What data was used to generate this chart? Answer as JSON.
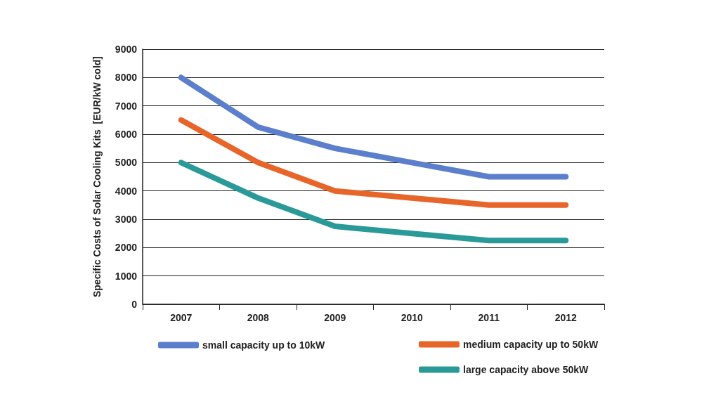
{
  "chart_data": {
    "type": "line",
    "ylabel": "Specific Costs of Solar Cooling Kits  [EUR/kW cold]",
    "categories": [
      "2007",
      "2008",
      "2009",
      "2010",
      "2011",
      "2012"
    ],
    "series": [
      {
        "name": "small capacity up to 10kW",
        "color": "#5b7fcc",
        "values": [
          8000,
          6250,
          5500,
          5000,
          4500,
          4500
        ]
      },
      {
        "name": "medium capacity up to 50kW",
        "color": "#e8652a",
        "values": [
          6500,
          5000,
          4000,
          3750,
          3500,
          3500
        ]
      },
      {
        "name": "large capacity above 50kW",
        "color": "#2a9a98",
        "values": [
          5000,
          3750,
          2750,
          2500,
          2250,
          2250
        ]
      }
    ],
    "ylim": [
      0,
      9000
    ],
    "yticks": [
      0,
      1000,
      2000,
      3000,
      4000,
      5000,
      6000,
      7000,
      8000,
      9000
    ],
    "grid": "y",
    "legend": "bottom",
    "line_style": "solid"
  }
}
